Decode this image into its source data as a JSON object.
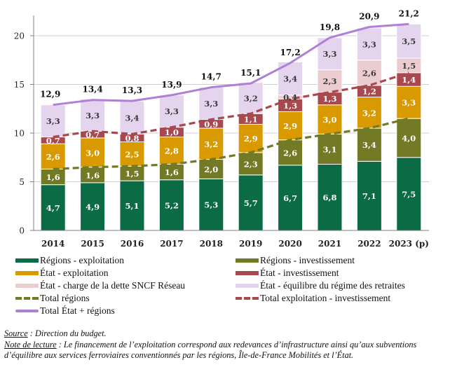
{
  "chart_data": {
    "type": "bar",
    "stacked": true,
    "title": "",
    "xlabel": "",
    "ylabel": "",
    "ylim": [
      0,
      22
    ],
    "yticks": [
      0,
      5,
      10,
      15,
      20
    ],
    "grid": true,
    "legend_position": "bottom",
    "categories": [
      "2014",
      "2015",
      "2016",
      "2017",
      "2018",
      "2019",
      "2020",
      "2021",
      "2022",
      "2023 (p)"
    ],
    "series": [
      {
        "name": "Régions - exploitation",
        "color": "#0b6b45",
        "label_color": "#ffffff",
        "values": [
          4.7,
          4.9,
          5.1,
          5.2,
          5.3,
          5.7,
          6.7,
          6.8,
          7.1,
          7.5
        ]
      },
      {
        "name": "Régions - investissement",
        "color": "#727a26",
        "label_color": "#ffffff",
        "values": [
          1.6,
          1.6,
          1.5,
          1.6,
          2.0,
          2.3,
          2.6,
          3.1,
          3.4,
          4.0
        ]
      },
      {
        "name": "État - exploitation",
        "color": "#d89a00",
        "label_color": "#ffffff",
        "values": [
          2.6,
          3.0,
          2.5,
          2.8,
          3.2,
          2.9,
          2.9,
          3.0,
          3.2,
          3.3
        ]
      },
      {
        "name": "État - investissement",
        "color": "#a8484f",
        "label_color": "#ffffff",
        "values": [
          0.7,
          0.7,
          0.8,
          1.0,
          0.9,
          1.1,
          1.3,
          1.3,
          1.2,
          1.4
        ]
      },
      {
        "name": "État - charge de la dette SNCF Réseau",
        "color": "#ebcdd0",
        "label_color": "#3a3a3a",
        "values": [
          0,
          0,
          0,
          0,
          0,
          0,
          0.4,
          2.3,
          2.6,
          1.5
        ]
      },
      {
        "name": "État - équilibre du régime des retraites",
        "color": "#e4d4ee",
        "label_color": "#3a3a3a",
        "values": [
          3.3,
          3.3,
          3.4,
          3.3,
          3.3,
          3.2,
          3.4,
          3.3,
          3.3,
          3.5
        ]
      }
    ],
    "lines": [
      {
        "name": "Total régions",
        "style": "dashed",
        "color": "#727a26",
        "values": [
          6.3,
          6.5,
          6.6,
          6.8,
          7.3,
          8.0,
          9.3,
          9.9,
          10.5,
          11.5
        ]
      },
      {
        "name": "Total exploitation - investissement",
        "style": "dashed",
        "color": "#a8484f",
        "values": [
          9.6,
          10.2,
          9.9,
          10.6,
          11.4,
          12.0,
          13.5,
          14.2,
          14.9,
          16.2
        ]
      },
      {
        "name": "Total État + régions",
        "style": "solid",
        "color": "#b07fd6",
        "values": [
          12.9,
          13.4,
          13.3,
          13.9,
          14.7,
          15.1,
          17.2,
          19.8,
          20.9,
          21.2
        ]
      }
    ],
    "total_labels": [
      "12,9",
      "13,4",
      "13,3",
      "13,9",
      "14,7",
      "15,1",
      "17,2",
      "19,8",
      "20,9",
      "21,2"
    ]
  },
  "legend": [
    {
      "label": "Régions - exploitation",
      "kind": "bar",
      "color": "#0b6b45"
    },
    {
      "label": "Régions - investissement",
      "kind": "bar",
      "color": "#727a26"
    },
    {
      "label": "État - exploitation",
      "kind": "bar",
      "color": "#d89a00"
    },
    {
      "label": "État - investissement",
      "kind": "bar",
      "color": "#a8484f"
    },
    {
      "label": "État - charge de la dette SNCF Réseau",
      "kind": "bar",
      "color": "#ebcdd0"
    },
    {
      "label": "État - équilibre du régime des retraites",
      "kind": "bar",
      "color": "#e4d4ee"
    },
    {
      "label": "Total régions",
      "kind": "dash",
      "color": "#727a26"
    },
    {
      "label": "Total exploitation - investissement",
      "kind": "dash",
      "color": "#a8484f"
    },
    {
      "label": "Total État + régions",
      "kind": "line",
      "color": "#b07fd6"
    }
  ],
  "notes": {
    "source_label": "Source",
    "source_text": " : Direction du budget.",
    "reading_label": "Note de lecture",
    "reading_text": " : Le financement de l’exploitation correspond aux redevances d’infrastructure ainsi qu’aux subventions d’équilibre aux services ferroviaires conventionnés par les régions, Île-de-France Mobilités et l’État."
  }
}
